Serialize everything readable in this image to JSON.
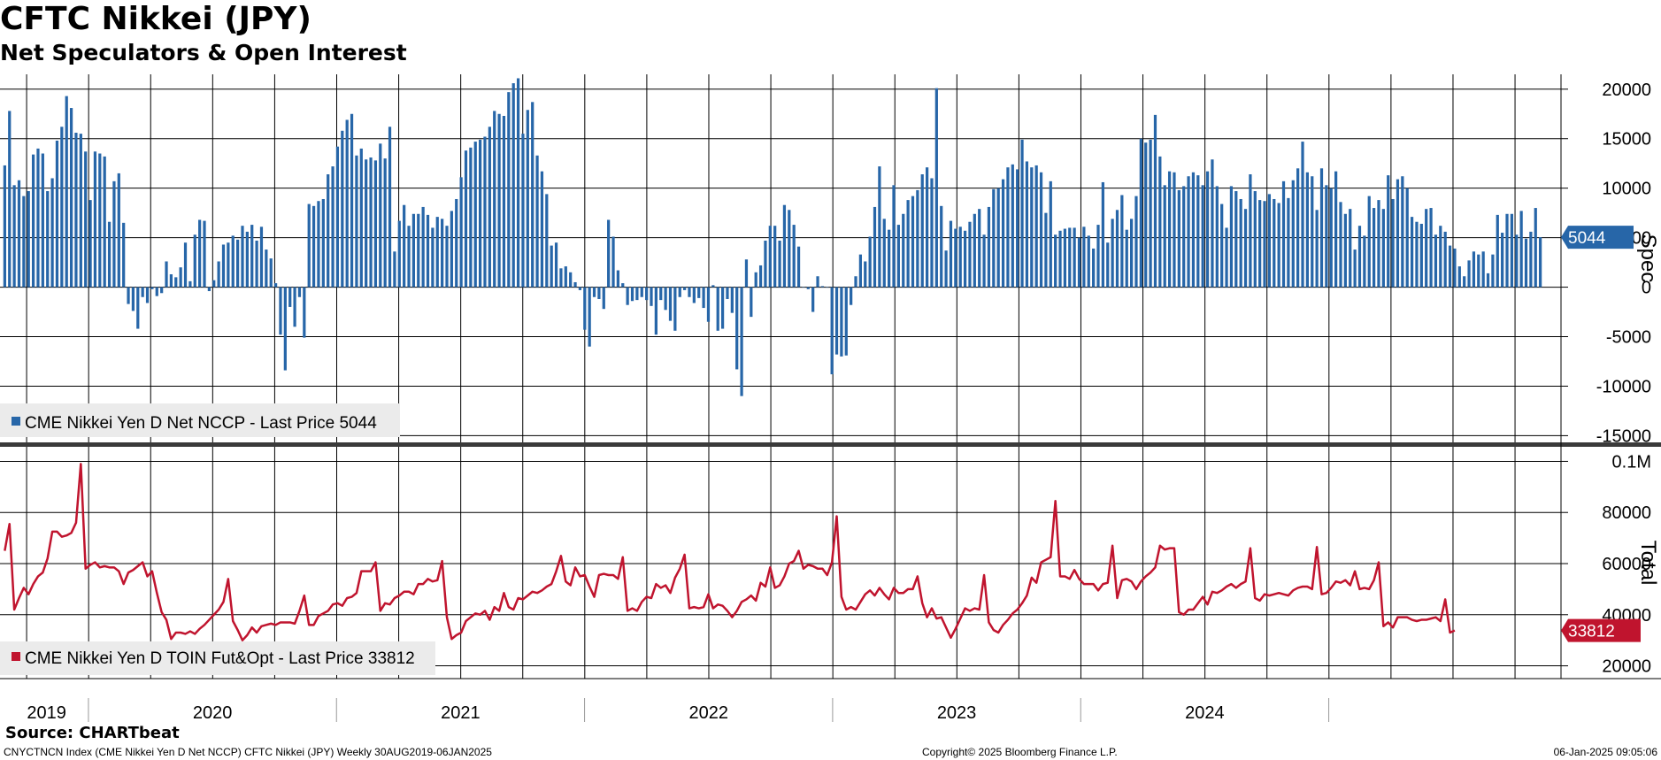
{
  "header": {
    "title": "CFTC Nikkei (JPY)",
    "subtitle": "Net Speculators & Open Interest"
  },
  "footer": {
    "source": "Source: CHARTbeat",
    "index_line": "CNYCTNCN Index (CME Nikkei Yen D Net NCCP) CFTC Nikkei (JPY)  Weekly 30AUG2019-06JAN2025",
    "copyright": "Copyright© 2025 Bloomberg Finance L.P.",
    "timestamp": "06-Jan-2025 09:05:06"
  },
  "colors": {
    "spec": "#2766a8",
    "total": "#c0142e",
    "grid": "#000000",
    "legend_bg": "#ebebeb"
  },
  "chart_data": [
    {
      "type": "bar",
      "panel": "top",
      "ylabel": "Spec",
      "ylim": [
        -15500,
        21500
      ],
      "yticks": [
        20000,
        15000,
        10000,
        5000,
        0,
        -5000,
        -10000,
        -15000
      ],
      "ytick_labels": [
        "20000",
        "15000",
        "10000",
        "5000",
        "0",
        "-5000",
        "-10000",
        "-15000"
      ],
      "last_value_label": "5044",
      "legend": "CME Nikkei Yen D Net NCCP - Last Price 5044",
      "grid": true,
      "x_label_years": [
        "2019",
        "2020",
        "2021",
        "2022",
        "2023",
        "2024"
      ],
      "series": [
        {
          "name": "CME Nikkei Yen D Net NCCP",
          "values": [
            12300,
            17800,
            10300,
            10800,
            9200,
            9700,
            13400,
            14000,
            13500,
            9700,
            11000,
            14800,
            16200,
            19300,
            18100,
            15600,
            15500,
            13700,
            8800,
            13700,
            13500,
            13200,
            6600,
            10700,
            11500,
            6500,
            -1700,
            -2400,
            -4200,
            -1000,
            -1600,
            -200,
            -900,
            -600,
            2600,
            1300,
            1000,
            2000,
            4500,
            600,
            5300,
            6800,
            6700,
            -400,
            700,
            2600,
            4300,
            4500,
            5200,
            4800,
            6200,
            5600,
            6300,
            4700,
            6100,
            3800,
            2900,
            400,
            -4800,
            -8400,
            -2000,
            -4000,
            -1000,
            -5100,
            8400,
            8200,
            8700,
            8900,
            11400,
            12200,
            14200,
            15800,
            16900,
            17500,
            13300,
            14000,
            12900,
            13100,
            12800,
            14500,
            13000,
            16200,
            3600,
            6700,
            8300,
            6200,
            7400,
            7400,
            8100,
            7300,
            6000,
            7100,
            6900,
            6200,
            7700,
            8900,
            11100,
            13800,
            14100,
            14700,
            14900,
            15200,
            16200,
            17800,
            17500,
            17300,
            19700,
            20600,
            21100,
            15500,
            17900,
            18700,
            13300,
            11700,
            9400,
            4200,
            4500,
            1900,
            2100,
            1500,
            500,
            -300,
            -4300,
            -6000,
            -1000,
            -1200,
            -2200,
            6800,
            5100,
            1700,
            400,
            -1800,
            -1400,
            -1300,
            -1000,
            -1300,
            -1900,
            -4800,
            -1300,
            -2300,
            -3400,
            -4400,
            -1000,
            -300,
            -1000,
            -1600,
            -1100,
            -2100,
            -3500,
            200,
            -4400,
            -4200,
            -1200,
            -2600,
            -8300,
            -11000,
            2800,
            -3000,
            1500,
            2200,
            4700,
            6200,
            6200,
            4700,
            8300,
            7800,
            6300,
            4100,
            0,
            -200,
            -2500,
            1100,
            100,
            0,
            -8800,
            -6800,
            -7000,
            -6900,
            -1800,
            1100,
            3300,
            2600,
            5100,
            8100,
            12200,
            6900,
            5800,
            10300,
            6300,
            7400,
            8800,
            9200,
            9800,
            11400,
            12100,
            11000,
            20100,
            8200,
            3700,
            6700,
            5900,
            6100,
            5700,
            6600,
            7400,
            7900,
            5300,
            8100,
            9900,
            10000,
            10900,
            12100,
            12400,
            11900,
            14900,
            12700,
            12100,
            12300,
            11600,
            7500,
            10700,
            5300,
            5700,
            5900,
            6000,
            6000,
            5000,
            6100,
            5200,
            3900,
            6300,
            10600,
            4500,
            6900,
            7800,
            9300,
            5800,
            6900,
            9200,
            15000,
            14600,
            14900,
            17400,
            13200,
            10300,
            11700,
            11600,
            9800,
            10200,
            11200,
            11600,
            11300,
            10300,
            11700,
            12900,
            10200,
            8400,
            6000,
            10200,
            9700,
            8900,
            7900,
            11400,
            9700,
            8800,
            8700,
            9400,
            8900,
            8500,
            10700,
            9000,
            10800,
            12000,
            14700,
            11600,
            11200,
            7800,
            12000,
            10300,
            10000,
            11700,
            8600,
            7400,
            7900,
            3800,
            6200,
            5200,
            9200,
            8000,
            8800,
            7900,
            11300,
            8900,
            10900,
            11200,
            10000,
            7100,
            6600,
            6400,
            7900,
            8000,
            5300,
            6200,
            5600,
            4200,
            3900,
            2100,
            1100,
            2700,
            3600,
            3300,
            3600,
            1400,
            3300,
            7300,
            5500,
            7400,
            7400,
            5300,
            7700,
            4900,
            5600,
            8000,
            5044
          ]
        }
      ]
    },
    {
      "type": "line",
      "panel": "bottom",
      "ylabel": "Total",
      "ylim": [
        15000,
        105000
      ],
      "yticks": [
        100000,
        80000,
        60000,
        40000,
        20000
      ],
      "ytick_labels": [
        "0.1M",
        "80000",
        "60000",
        "40000",
        "20000"
      ],
      "last_value_label": "33812",
      "legend": "CME Nikkei Yen D TOIN Fut&Opt - Last Price 33812",
      "grid": true,
      "series": [
        {
          "name": "CME Nikkei Yen D TOIN Fut&Opt",
          "values": [
            65000,
            75500,
            42000,
            46500,
            50500,
            48000,
            52000,
            55000,
            56500,
            62000,
            72500,
            72500,
            70500,
            71000,
            72000,
            76000,
            99000,
            58000,
            59500,
            60500,
            58500,
            59000,
            58500,
            58500,
            57000,
            52000,
            56500,
            57500,
            59000,
            60500,
            55000,
            57000,
            48500,
            41000,
            38000,
            30500,
            33000,
            33000,
            32500,
            33500,
            32500,
            34500,
            36000,
            38000,
            40000,
            42000,
            45000,
            54000,
            37500,
            34000,
            30000,
            32000,
            35000,
            33000,
            35500,
            36000,
            36500,
            36000,
            37000,
            37000,
            37000,
            36500,
            41500,
            47500,
            36000,
            36000,
            39500,
            40500,
            41500,
            44000,
            44500,
            43500,
            46500,
            47000,
            48500,
            57000,
            57000,
            57000,
            60500,
            41500,
            44500,
            44000,
            46500,
            47500,
            49000,
            49000,
            48000,
            52000,
            52000,
            54000,
            53000,
            53500,
            61000,
            39000,
            30500,
            32000,
            33000,
            37500,
            39000,
            40500,
            40000,
            41500,
            38000,
            43000,
            41500,
            48500,
            43000,
            42000,
            46500,
            46000,
            47500,
            49000,
            48500,
            49500,
            51000,
            52000,
            57000,
            63000,
            53000,
            51500,
            58500,
            55000,
            55500,
            51000,
            47000,
            55500,
            56000,
            55500,
            55500,
            54000,
            62500,
            41500,
            42500,
            41500,
            45000,
            47000,
            46500,
            52000,
            50500,
            51500,
            48500,
            54500,
            58000,
            63500,
            42500,
            43000,
            42500,
            43000,
            48000,
            42500,
            44000,
            43500,
            41500,
            39000,
            41500,
            45000,
            46000,
            47500,
            45500,
            52500,
            51000,
            58500,
            50500,
            51500,
            55000,
            60000,
            61000,
            65000,
            58000,
            59500,
            59000,
            58000,
            58000,
            55500,
            60500,
            78500,
            47000,
            42000,
            43000,
            42000,
            45000,
            48000,
            49500,
            47500,
            50500,
            48000,
            46000,
            50500,
            48500,
            48500,
            50000,
            50000,
            55000,
            44500,
            39000,
            42500,
            38500,
            39000,
            35000,
            31000,
            34500,
            38500,
            42500,
            41500,
            42500,
            42000,
            55500,
            37000,
            34000,
            33000,
            36000,
            38000,
            40500,
            42000,
            44500,
            47500,
            54500,
            52500,
            60500,
            61500,
            62500,
            84500,
            55000,
            55000,
            54000,
            57500,
            54000,
            52000,
            52000,
            52000,
            49500,
            52000,
            52500,
            67000,
            46500,
            53500,
            54000,
            53000,
            50000,
            53000,
            55000,
            56500,
            58500,
            67000,
            65500,
            66000,
            66000,
            41000,
            40000,
            42000,
            42000,
            44500,
            47000,
            44000,
            49000,
            48500,
            49500,
            51000,
            52000,
            50500,
            52000,
            53000,
            66000,
            46500,
            45500,
            48000,
            47500,
            48000,
            48500,
            48000,
            47500,
            49500,
            50500,
            51000,
            51000,
            50000,
            66500,
            48000,
            48500,
            50500,
            53000,
            52500,
            53500,
            51500,
            57000,
            50000,
            50500,
            50000,
            53500,
            60500,
            35500,
            37000,
            35000,
            39000,
            39000,
            39000,
            38000,
            37500,
            38000,
            38000,
            38500,
            39000,
            37500,
            46000,
            33000,
            33812
          ]
        }
      ]
    }
  ]
}
